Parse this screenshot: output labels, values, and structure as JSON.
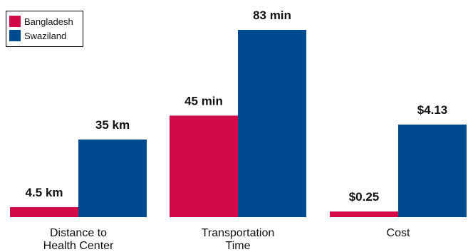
{
  "colors": {
    "bangladesh": "#d20a47",
    "swaziland": "#004b8f"
  },
  "legend": [
    {
      "name": "Bangladesh",
      "color": "#d20a47"
    },
    {
      "name": "Swaziland",
      "color": "#004b8f"
    }
  ],
  "chart_data": {
    "type": "bar",
    "title": "",
    "legend_position": "top-left",
    "grid": false,
    "categories": [
      [
        "Distance to",
        "Health Center"
      ],
      [
        "Transportation",
        "Time"
      ],
      [
        "Cost"
      ]
    ],
    "series": [
      {
        "name": "Bangladesh",
        "values": [
          4.5,
          45,
          0.25
        ],
        "labels": [
          "4.5 km",
          "45 min",
          "$0.25"
        ]
      },
      {
        "name": "Swaziland",
        "values": [
          35,
          83,
          4.13
        ],
        "labels": [
          "35 km",
          "83 min",
          "$4.13"
        ]
      }
    ],
    "per_category_scale": [
      {
        "unit": "km",
        "max_value": 35
      },
      {
        "unit": "min",
        "max_value": 83
      },
      {
        "unit": "$",
        "max_value": 4.13
      }
    ]
  }
}
